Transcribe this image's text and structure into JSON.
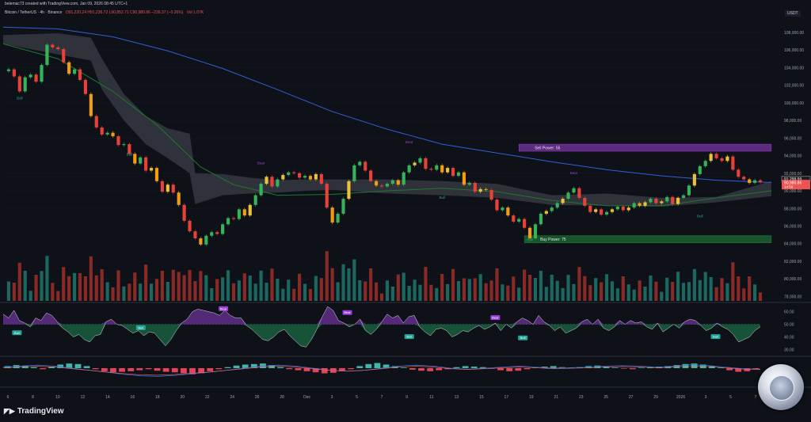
{
  "header": {
    "title": "belemac73 created with TradingView.com, Jan 09, 2026 08:45 UTC+1",
    "symbol": "Bitcoin / TetherUS · 4h · Binance",
    "ohlc": "O91,220.24 H91,236.72 L90,852.71 C90,980.86 −239.37 (−0.26%)",
    "volume": "Vol 1.07K",
    "currency": "USDT"
  },
  "brand": {
    "logo_text": "TradingView",
    "logo_icon": "tradingview-icon"
  },
  "colors": {
    "background": "#0f1118",
    "bull": "#26a69a",
    "bear": "#ef5350",
    "ma_blue": "#2f5fd8",
    "ma_green": "#1b7a2c",
    "purple": "#9c3fd3",
    "green_zone": "#1f8a3c"
  },
  "chart_data": {
    "type": "candlestick",
    "price_axis": {
      "ticks": [
        108000,
        106000,
        104000,
        102000,
        100000,
        98000,
        96000,
        94000,
        92000,
        90000,
        88000,
        86000,
        84000,
        82000,
        80000,
        78000
      ],
      "range": [
        77500,
        109700
      ]
    },
    "last_price": "91,299.99",
    "current_price": "90,980.86",
    "countdown": "14:59",
    "x_tick_labels": [
      "6",
      "8",
      "10",
      "12",
      "14",
      "16",
      "18",
      "20",
      "22",
      "24",
      "26",
      "28",
      "Dec",
      "3",
      "5",
      "7",
      "9",
      "11",
      "13",
      "15",
      "17",
      "19",
      "21",
      "23",
      "25",
      "27",
      "29",
      "2026",
      "3",
      "5",
      "7"
    ],
    "price_path": [
      [
        0,
        103600
      ],
      [
        2,
        103800
      ],
      [
        4,
        103000
      ],
      [
        5,
        101300
      ],
      [
        6,
        102900
      ],
      [
        7,
        103200
      ],
      [
        8,
        102400
      ],
      [
        9,
        104300
      ],
      [
        10,
        106600
      ],
      [
        11,
        106300
      ],
      [
        12,
        106100
      ],
      [
        13,
        104600
      ],
      [
        14,
        103300
      ],
      [
        15,
        103800
      ],
      [
        16,
        102600
      ],
      [
        17,
        101000
      ],
      [
        18,
        98500
      ],
      [
        19,
        97200
      ],
      [
        20,
        96400
      ],
      [
        21,
        96600
      ],
      [
        22,
        96200
      ],
      [
        23,
        95200
      ],
      [
        24,
        95300
      ],
      [
        25,
        94200
      ],
      [
        26,
        93100
      ],
      [
        27,
        93800
      ],
      [
        28,
        92300
      ],
      [
        29,
        92600
      ],
      [
        30,
        91100
      ],
      [
        31,
        89900
      ],
      [
        32,
        90700
      ],
      [
        33,
        89800
      ],
      [
        34,
        88400
      ],
      [
        35,
        86600
      ],
      [
        36,
        85400
      ],
      [
        37,
        84600
      ],
      [
        38,
        83900
      ],
      [
        39,
        84900
      ],
      [
        40,
        85300
      ],
      [
        41,
        85100
      ],
      [
        42,
        86200
      ],
      [
        43,
        86900
      ],
      [
        44,
        86800
      ],
      [
        45,
        87900
      ],
      [
        46,
        87200
      ],
      [
        47,
        88400
      ],
      [
        48,
        89500
      ],
      [
        49,
        90800
      ],
      [
        50,
        91600
      ],
      [
        51,
        90500
      ],
      [
        52,
        91300
      ],
      [
        53,
        91800
      ],
      [
        54,
        92100
      ],
      [
        55,
        92000
      ],
      [
        56,
        91500
      ],
      [
        57,
        91700
      ],
      [
        58,
        91300
      ],
      [
        59,
        91900
      ],
      [
        60,
        90800
      ],
      [
        61,
        88100
      ],
      [
        62,
        86400
      ],
      [
        63,
        87400
      ],
      [
        64,
        89100
      ],
      [
        65,
        91100
      ],
      [
        66,
        92900
      ],
      [
        67,
        93300
      ],
      [
        68,
        92300
      ],
      [
        69,
        91100
      ],
      [
        70,
        90600
      ],
      [
        71,
        90500
      ],
      [
        72,
        90800
      ],
      [
        73,
        91200
      ],
      [
        74,
        90700
      ],
      [
        75,
        92100
      ],
      [
        76,
        92900
      ],
      [
        77,
        93200
      ],
      [
        78,
        93700
      ],
      [
        79,
        92500
      ],
      [
        80,
        92400
      ],
      [
        81,
        92900
      ],
      [
        82,
        92100
      ],
      [
        83,
        92600
      ],
      [
        84,
        91700
      ],
      [
        85,
        92100
      ],
      [
        86,
        90700
      ],
      [
        87,
        90900
      ],
      [
        88,
        89900
      ],
      [
        89,
        90200
      ],
      [
        90,
        90100
      ],
      [
        91,
        89000
      ],
      [
        92,
        87800
      ],
      [
        93,
        88100
      ],
      [
        94,
        87200
      ],
      [
        95,
        86500
      ],
      [
        96,
        86800
      ],
      [
        97,
        85800
      ],
      [
        98,
        84600
      ],
      [
        99,
        86200
      ],
      [
        100,
        87400
      ],
      [
        101,
        87700
      ],
      [
        102,
        88100
      ],
      [
        103,
        88600
      ],
      [
        104,
        89100
      ],
      [
        105,
        89800
      ],
      [
        106,
        90300
      ],
      [
        107,
        89200
      ],
      [
        108,
        88300
      ],
      [
        109,
        87600
      ],
      [
        110,
        87900
      ],
      [
        111,
        87300
      ],
      [
        112,
        87600
      ],
      [
        113,
        87900
      ],
      [
        114,
        88200
      ],
      [
        115,
        87800
      ],
      [
        116,
        88100
      ],
      [
        117,
        88600
      ],
      [
        118,
        88300
      ],
      [
        119,
        88700
      ],
      [
        120,
        89100
      ],
      [
        121,
        88600
      ],
      [
        122,
        88800
      ],
      [
        123,
        89300
      ],
      [
        124,
        88500
      ],
      [
        125,
        89200
      ],
      [
        126,
        89500
      ],
      [
        127,
        90600
      ],
      [
        128,
        91900
      ],
      [
        129,
        92800
      ],
      [
        130,
        93400
      ],
      [
        131,
        94200
      ],
      [
        132,
        93700
      ],
      [
        133,
        93400
      ],
      [
        134,
        93900
      ],
      [
        135,
        92400
      ],
      [
        136,
        91600
      ],
      [
        137,
        91300
      ],
      [
        138,
        90900
      ],
      [
        139,
        91200
      ],
      [
        140,
        90980
      ]
    ],
    "moving_averages": [
      {
        "color_key": "ma_blue",
        "points": [
          [
            0,
            108600
          ],
          [
            10,
            108400
          ],
          [
            20,
            107500
          ],
          [
            30,
            105900
          ],
          [
            40,
            103900
          ],
          [
            50,
            101500
          ],
          [
            60,
            99000
          ],
          [
            70,
            97000
          ],
          [
            80,
            95300
          ],
          [
            90,
            94300
          ],
          [
            100,
            93300
          ],
          [
            110,
            92400
          ],
          [
            120,
            91700
          ],
          [
            130,
            91200
          ],
          [
            140,
            90950
          ]
        ]
      },
      {
        "color_key": "ma_green",
        "points": [
          [
            0,
            106700
          ],
          [
            10,
            105000
          ],
          [
            20,
            101300
          ],
          [
            28,
            97500
          ],
          [
            36,
            92700
          ],
          [
            42,
            90700
          ],
          [
            50,
            89500
          ],
          [
            60,
            89600
          ],
          [
            70,
            90000
          ],
          [
            80,
            90300
          ],
          [
            90,
            89900
          ],
          [
            100,
            88900
          ],
          [
            110,
            88300
          ],
          [
            120,
            88300
          ],
          [
            130,
            89200
          ],
          [
            140,
            90000
          ]
        ]
      }
    ],
    "cloud_band": [
      [
        0,
        107700,
        106700
      ],
      [
        10,
        107900,
        105500
      ],
      [
        16,
        107400,
        104800
      ],
      [
        18,
        105000,
        101500
      ],
      [
        22,
        101000,
        98000
      ],
      [
        26,
        98500,
        95300
      ],
      [
        30,
        97100,
        93700
      ],
      [
        34,
        96500,
        92000
      ],
      [
        35,
        92000,
        88500
      ],
      [
        40,
        91900,
        89500
      ],
      [
        45,
        91500,
        89700
      ],
      [
        50,
        91200,
        89800
      ],
      [
        55,
        91300,
        90000
      ],
      [
        60,
        91300,
        90100
      ],
      [
        70,
        91300,
        89700
      ],
      [
        80,
        91100,
        89500
      ],
      [
        90,
        90800,
        89200
      ],
      [
        100,
        89500,
        88400
      ],
      [
        110,
        89700,
        88300
      ],
      [
        120,
        89200,
        88200
      ],
      [
        130,
        89300,
        88700
      ],
      [
        140,
        91100,
        89400
      ]
    ],
    "zones": [
      {
        "label": "Sell Power: 55",
        "price_top": 95300,
        "price_bottom": 94500,
        "from": 94,
        "to": 140,
        "color_key": "purple"
      },
      {
        "label": "Buy Power: 75",
        "price_top": 84900,
        "price_bottom": 84100,
        "from": 95,
        "to": 140,
        "color_key": "green_zone"
      }
    ],
    "annotations": [
      {
        "text": "Bull",
        "x": 3,
        "y": 100400,
        "kind": "bull"
      },
      {
        "text": "Bull",
        "x": 23,
        "y": 94000,
        "kind": "bull"
      },
      {
        "text": "Bear",
        "x": 47,
        "y": 93000,
        "kind": "bear"
      },
      {
        "text": "Bear",
        "x": 74,
        "y": 95400,
        "kind": "bear"
      },
      {
        "text": "Bull",
        "x": 80,
        "y": 89100,
        "kind": "bull"
      },
      {
        "text": "Bull",
        "x": 96,
        "y": 84300,
        "kind": "bull"
      },
      {
        "text": "Bear",
        "x": 104,
        "y": 91900,
        "kind": "bear"
      },
      {
        "text": "Bull",
        "x": 127,
        "y": 87000,
        "kind": "bull"
      }
    ],
    "oscillator": {
      "levels": [
        "60.00",
        "50.00",
        "40.00",
        "30.00"
      ],
      "range": [
        26,
        66
      ],
      "values": [
        58,
        55,
        61,
        53,
        51,
        48,
        55,
        53,
        59,
        57,
        52,
        47,
        44,
        40,
        42,
        38,
        36,
        41,
        42,
        52,
        54,
        50,
        49,
        46,
        43,
        45,
        41,
        44,
        43,
        38,
        33,
        38,
        45,
        51,
        54,
        60,
        62,
        61,
        60,
        59,
        57,
        61,
        57,
        55,
        55,
        49,
        46,
        42,
        38,
        37,
        40,
        44,
        46,
        41,
        37,
        33,
        32,
        38,
        46,
        56,
        64,
        61,
        53,
        51,
        48,
        50,
        54,
        45,
        42,
        46,
        52,
        58,
        55,
        57,
        51,
        56,
        57,
        48,
        44,
        41,
        46,
        47,
        45,
        40,
        42,
        45,
        44,
        47,
        49,
        46,
        48,
        51,
        45,
        50,
        47,
        52,
        55,
        53,
        50,
        57,
        52,
        49,
        45,
        48,
        43,
        45,
        47,
        52,
        54,
        50,
        54,
        47,
        45,
        48,
        53,
        50,
        53,
        51,
        52,
        48,
        46,
        51,
        44,
        47,
        50,
        47,
        52,
        54,
        53,
        49,
        45,
        47,
        51,
        48,
        46,
        42,
        36,
        38,
        40,
        45,
        48
      ],
      "labels": [
        {
          "text": "Bull",
          "x": 4,
          "y": 43,
          "kind": "bull"
        },
        {
          "text": "Bull",
          "x": 40,
          "y": 47,
          "kind": "bull"
        },
        {
          "text": "Bear",
          "x": 64,
          "y": 62,
          "kind": "bear"
        },
        {
          "text": "Bear",
          "x": 100,
          "y": 59,
          "kind": "bear"
        },
        {
          "text": "Bull",
          "x": 118,
          "y": 40,
          "kind": "bull"
        },
        {
          "text": "Bear",
          "x": 143,
          "y": 55,
          "kind": "bear"
        },
        {
          "text": "Bull",
          "x": 151,
          "y": 39,
          "kind": "bull"
        },
        {
          "text": "Bull",
          "x": 207,
          "y": 40,
          "kind": "bull"
        }
      ]
    },
    "macd": {
      "range": [
        -1,
        1
      ],
      "hist": [
        0.2,
        0.3,
        0.25,
        0.1,
        -0.1,
        0.15,
        0.35,
        0.45,
        0.4,
        0.2,
        -0.1,
        -0.3,
        -0.4,
        -0.35,
        -0.3,
        -0.2,
        -0.1,
        -0.25,
        -0.35,
        -0.4,
        -0.5,
        -0.6,
        -0.5,
        -0.3,
        -0.1,
        0.1,
        0.25,
        0.35,
        0.4,
        0.45,
        0.3,
        0.1,
        -0.1,
        -0.2,
        -0.3,
        -0.4,
        -0.5,
        -0.45,
        -0.3,
        -0.1,
        0.2,
        0.4,
        0.5,
        0.35,
        0.2,
        0.05,
        -0.15,
        -0.25,
        -0.3,
        -0.2,
        -0.1,
        0.1,
        0.2,
        0.15,
        0.1,
        -0.05,
        -0.2,
        -0.3,
        -0.25,
        -0.1,
        0.05,
        0.15,
        0.2,
        0.1,
        0.05,
        0.1,
        0.2,
        0.25,
        0.15,
        0.05,
        -0.05,
        -0.1,
        0.05,
        0.1,
        0.15,
        0.2,
        0.3,
        0.4,
        0.45,
        0.35,
        0.2,
        0.05,
        -0.2,
        -0.35,
        -0.3,
        -0.1
      ],
      "line": [
        0.1,
        0.2,
        0.3,
        0.2,
        0.0,
        -0.2,
        -0.4,
        -0.6,
        -0.75,
        -0.8,
        -0.7,
        -0.55,
        -0.4,
        -0.2,
        0.0,
        0.2,
        0.3,
        0.2,
        0.0,
        -0.2,
        -0.3,
        -0.2,
        0.0,
        0.2,
        0.3,
        0.2,
        0.0,
        -0.1,
        0.0,
        0.1,
        0.2,
        0.1,
        0.0,
        0.05,
        0.1,
        0.2,
        0.25,
        0.2,
        0.1,
        0.2,
        0.35,
        0.25,
        0.1,
        -0.05,
        -0.1
      ]
    }
  }
}
